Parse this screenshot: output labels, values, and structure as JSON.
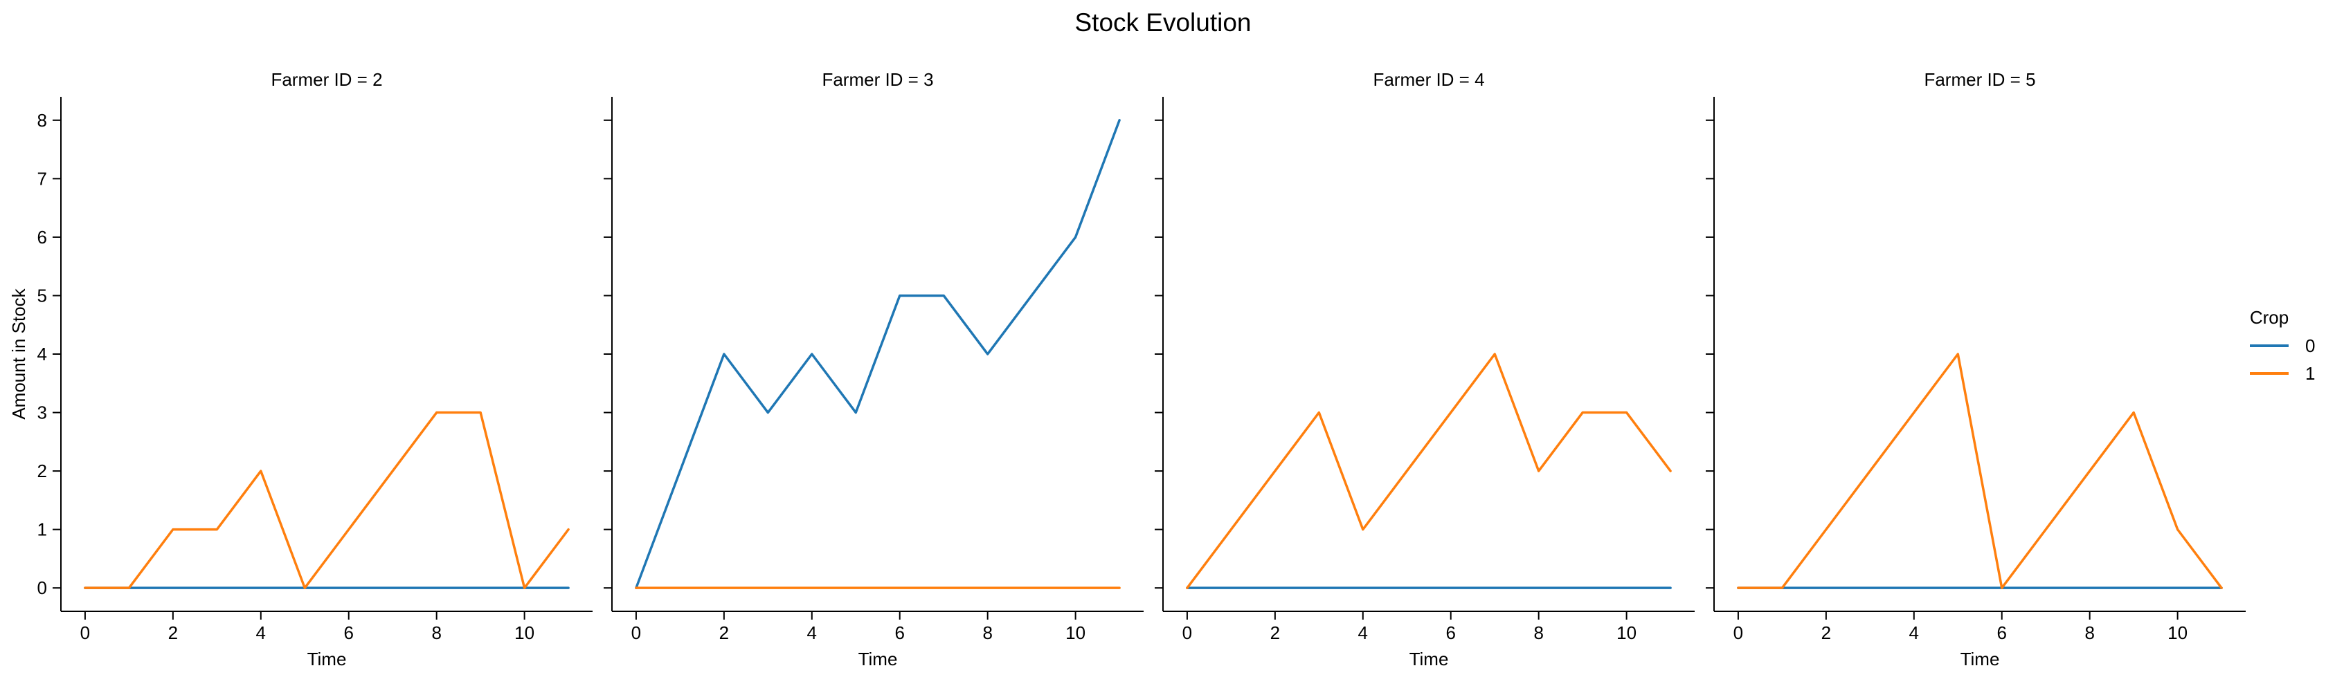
{
  "figure": {
    "title": "Stock Evolution"
  },
  "legend": {
    "title": "Crop",
    "placement": "right"
  },
  "colors": {
    "0": "#1f77b4",
    "1": "#ff7f0e"
  },
  "chart_data": [
    {
      "type": "line",
      "title": "Farmer ID = 2",
      "xlabel": "Time",
      "ylabel": "Amount in Stock",
      "xlim": [
        -0.55,
        11.55
      ],
      "ylim": [
        -0.4,
        8.4
      ],
      "xticks": [
        0,
        2,
        4,
        6,
        8,
        10
      ],
      "yticks": [
        0,
        1,
        2,
        3,
        4,
        5,
        6,
        7,
        8
      ],
      "x": [
        0,
        1,
        2,
        3,
        4,
        5,
        6,
        7,
        8,
        9,
        10,
        11
      ],
      "series": [
        {
          "name": "0",
          "values": [
            0,
            0,
            0,
            0,
            0,
            0,
            0,
            0,
            0,
            0,
            0,
            0
          ]
        },
        {
          "name": "1",
          "values": [
            0,
            0,
            1,
            1,
            2,
            0,
            1,
            2,
            3,
            3,
            0,
            1
          ]
        }
      ]
    },
    {
      "type": "line",
      "title": "Farmer ID = 3",
      "xlabel": "Time",
      "ylabel": "",
      "xlim": [
        -0.55,
        11.55
      ],
      "ylim": [
        -0.4,
        8.4
      ],
      "xticks": [
        0,
        2,
        4,
        6,
        8,
        10
      ],
      "yticks": [
        0,
        1,
        2,
        3,
        4,
        5,
        6,
        7,
        8
      ],
      "x": [
        0,
        1,
        2,
        3,
        4,
        5,
        6,
        7,
        8,
        9,
        10,
        11
      ],
      "series": [
        {
          "name": "0",
          "values": [
            0,
            2,
            4,
            3,
            4,
            3,
            5,
            5,
            4,
            5,
            6,
            8
          ]
        },
        {
          "name": "1",
          "values": [
            0,
            0,
            0,
            0,
            0,
            0,
            0,
            0,
            0,
            0,
            0,
            0
          ]
        }
      ]
    },
    {
      "type": "line",
      "title": "Farmer ID = 4",
      "xlabel": "Time",
      "ylabel": "",
      "xlim": [
        -0.55,
        11.55
      ],
      "ylim": [
        -0.4,
        8.4
      ],
      "xticks": [
        0,
        2,
        4,
        6,
        8,
        10
      ],
      "yticks": [
        0,
        1,
        2,
        3,
        4,
        5,
        6,
        7,
        8
      ],
      "x": [
        0,
        1,
        2,
        3,
        4,
        5,
        6,
        7,
        8,
        9,
        10,
        11
      ],
      "series": [
        {
          "name": "0",
          "values": [
            0,
            0,
            0,
            0,
            0,
            0,
            0,
            0,
            0,
            0,
            0,
            0
          ]
        },
        {
          "name": "1",
          "values": [
            0,
            1,
            2,
            3,
            1,
            2,
            3,
            4,
            2,
            3,
            3,
            2
          ]
        }
      ]
    },
    {
      "type": "line",
      "title": "Farmer ID = 5",
      "xlabel": "Time",
      "ylabel": "",
      "xlim": [
        -0.55,
        11.55
      ],
      "ylim": [
        -0.4,
        8.4
      ],
      "xticks": [
        0,
        2,
        4,
        6,
        8,
        10
      ],
      "yticks": [
        0,
        1,
        2,
        3,
        4,
        5,
        6,
        7,
        8
      ],
      "x": [
        0,
        1,
        2,
        3,
        4,
        5,
        6,
        7,
        8,
        9,
        10,
        11
      ],
      "series": [
        {
          "name": "0",
          "values": [
            0,
            0,
            0,
            0,
            0,
            0,
            0,
            0,
            0,
            0,
            0,
            0
          ]
        },
        {
          "name": "1",
          "values": [
            0,
            0,
            1,
            2,
            3,
            4,
            0,
            1,
            2,
            3,
            1,
            0
          ]
        }
      ]
    }
  ]
}
